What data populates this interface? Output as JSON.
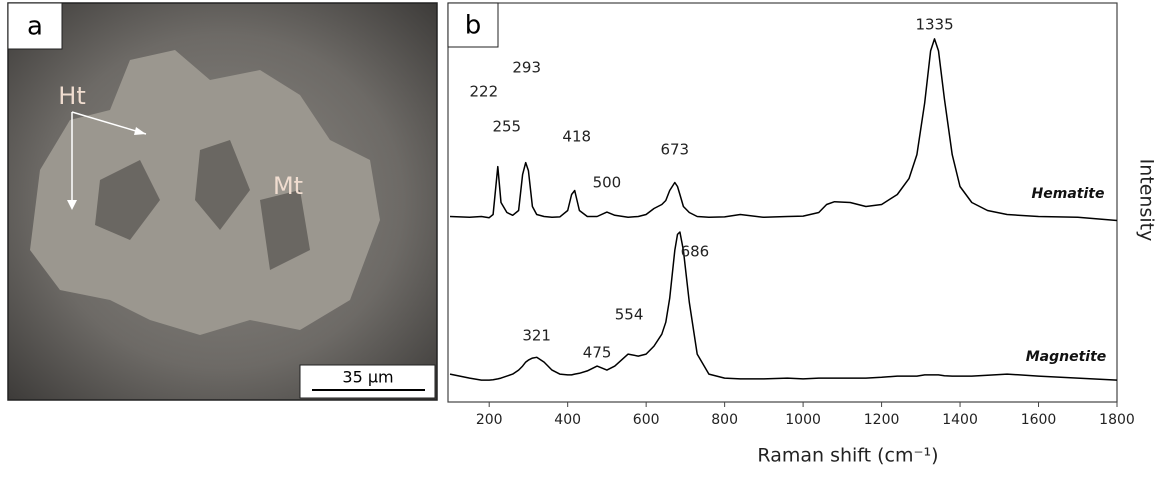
{
  "panel_a": {
    "label": "a",
    "phases": [
      "Ht",
      "Mt"
    ],
    "scale_bar": "35 µm"
  },
  "chart_data": {
    "type": "line",
    "panel_label": "b",
    "x_label": "Raman shift (cm⁻¹)",
    "y_label": "Intensity",
    "xlim": [
      95,
      1800
    ],
    "ylim": [
      0,
      100
    ],
    "xticks": [
      200,
      400,
      600,
      800,
      1000,
      1200,
      1400,
      1600,
      1800
    ],
    "x": [
      100,
      150,
      180,
      200,
      210,
      222,
      230,
      245,
      260,
      275,
      285,
      293,
      300,
      310,
      321,
      340,
      360,
      380,
      400,
      410,
      418,
      430,
      450,
      475,
      500,
      520,
      554,
      580,
      600,
      620,
      640,
      650,
      660,
      673,
      680,
      686,
      695,
      710,
      730,
      760,
      800,
      840,
      900,
      960,
      1000,
      1040,
      1060,
      1080,
      1120,
      1160,
      1200,
      1240,
      1270,
      1290,
      1310,
      1325,
      1335,
      1345,
      1360,
      1380,
      1400,
      1430,
      1470,
      1520,
      1600,
      1700,
      1800
    ],
    "series": [
      {
        "name": "Hematite",
        "color": "#000000",
        "values": [
          46.5,
          46.3,
          46.5,
          46.2,
          47,
          59,
          50,
          47.5,
          46.8,
          48,
          57,
          60,
          58,
          49,
          47,
          46.5,
          46.3,
          46.4,
          48,
          52,
          53,
          48,
          46.5,
          46.5,
          47.6,
          46.8,
          46.3,
          46.5,
          47,
          48.5,
          49.5,
          50.5,
          53,
          55,
          54,
          52,
          49,
          47.5,
          46.5,
          46.3,
          46.4,
          47,
          46.3,
          46.5,
          46.6,
          47.5,
          49.5,
          50.2,
          50,
          49,
          49.5,
          52,
          56,
          62,
          75,
          88,
          91,
          88,
          76,
          62,
          54,
          50,
          48,
          47,
          46.5,
          46.3,
          45.5
        ],
        "peak_labels": [
          222,
          293,
          255,
          418,
          500,
          673,
          1335
        ]
      },
      {
        "name": "Magnetite",
        "color": "#000000",
        "values": [
          7,
          6,
          5.5,
          5.5,
          5.6,
          5.8,
          6,
          6.5,
          7,
          8,
          9,
          10,
          10.5,
          11,
          11.2,
          10,
          8,
          7,
          6.8,
          6.8,
          7,
          7.2,
          7.8,
          9,
          8,
          9,
          12,
          11.5,
          12,
          14,
          17,
          20,
          26,
          38,
          42,
          42.6,
          38,
          25,
          12,
          7,
          6,
          5.8,
          5.8,
          6,
          5.8,
          6,
          6,
          6,
          6,
          6,
          6.2,
          6.5,
          6.5,
          6.5,
          6.8,
          6.8,
          6.8,
          6.8,
          6.6,
          6.5,
          6.5,
          6.5,
          6.7,
          7,
          6.5,
          6,
          5.5
        ],
        "peak_labels": [
          686,
          321,
          475,
          554
        ]
      }
    ]
  }
}
